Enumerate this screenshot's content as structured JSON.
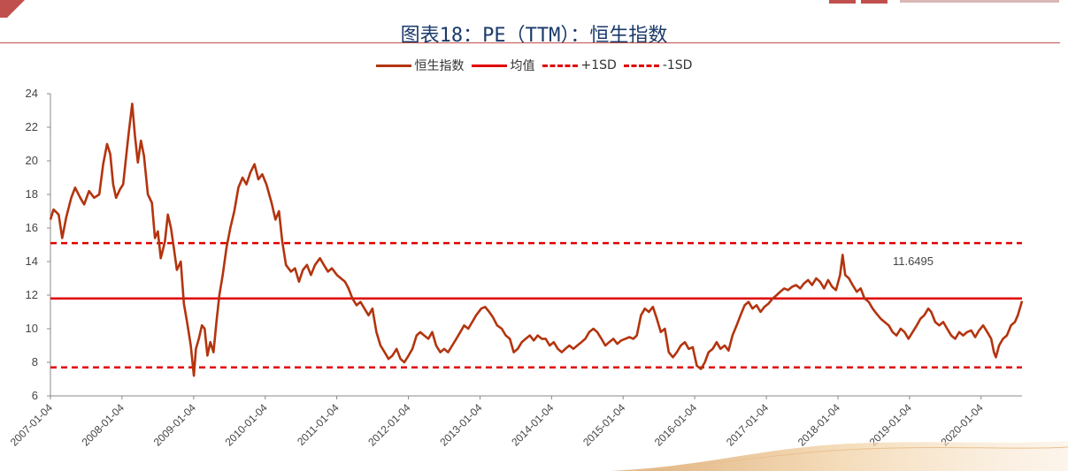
{
  "title": "图表18：PE（TTM）：恒生指数",
  "colors": {
    "index": "#b3340e",
    "mean": "#e00000",
    "sd": "#e00000",
    "axis": "#888888",
    "title": "#1a3a6a"
  },
  "chart_data": {
    "type": "line",
    "title": "图表18：PE（TTM）：恒生指数",
    "xlabel": "",
    "ylabel": "",
    "ylim": [
      6,
      24
    ],
    "yticks": [
      6,
      8,
      10,
      12,
      14,
      16,
      18,
      20,
      22,
      24
    ],
    "xticks": [
      "2007-01-04",
      "2008-01-04",
      "2009-01-04",
      "2010-01-04",
      "2011-01-04",
      "2012-01-04",
      "2013-01-04",
      "2014-01-04",
      "2015-01-04",
      "2016-01-04",
      "2017-01-04",
      "2018-01-04",
      "2019-01-04",
      "2020-01-04"
    ],
    "x_range": [
      "2007-01-04",
      "2020-07-31"
    ],
    "legend_position": "top",
    "annotation": "11.6495",
    "series": [
      {
        "name": "恒生指数",
        "style": "solid-thick",
        "points": [
          [
            "2007-01-04",
            16.5
          ],
          [
            "2007-01-20",
            17.1
          ],
          [
            "2007-02-15",
            16.8
          ],
          [
            "2007-03-05",
            15.4
          ],
          [
            "2007-03-25",
            16.6
          ],
          [
            "2007-04-20",
            17.8
          ],
          [
            "2007-05-10",
            18.4
          ],
          [
            "2007-06-05",
            17.8
          ],
          [
            "2007-06-25",
            17.4
          ],
          [
            "2007-07-20",
            18.2
          ],
          [
            "2007-08-15",
            17.8
          ],
          [
            "2007-09-10",
            18.0
          ],
          [
            "2007-09-30",
            19.8
          ],
          [
            "2007-10-20",
            21.0
          ],
          [
            "2007-11-05",
            20.4
          ],
          [
            "2007-11-20",
            18.6
          ],
          [
            "2007-12-05",
            17.8
          ],
          [
            "2007-12-25",
            18.3
          ],
          [
            "2008-01-10",
            18.6
          ],
          [
            "2008-02-05",
            21.4
          ],
          [
            "2008-02-25",
            23.4
          ],
          [
            "2008-03-10",
            21.5
          ],
          [
            "2008-03-25",
            19.9
          ],
          [
            "2008-04-10",
            21.2
          ],
          [
            "2008-04-25",
            20.3
          ],
          [
            "2008-05-15",
            18.0
          ],
          [
            "2008-06-05",
            17.5
          ],
          [
            "2008-06-20",
            15.4
          ],
          [
            "2008-07-05",
            15.8
          ],
          [
            "2008-07-20",
            14.2
          ],
          [
            "2008-08-10",
            15.2
          ],
          [
            "2008-08-25",
            16.8
          ],
          [
            "2008-09-10",
            16.0
          ],
          [
            "2008-09-25",
            14.8
          ],
          [
            "2008-10-10",
            13.5
          ],
          [
            "2008-10-30",
            14.0
          ],
          [
            "2008-11-15",
            11.5
          ],
          [
            "2008-12-01",
            10.4
          ],
          [
            "2008-12-20",
            9.0
          ],
          [
            "2009-01-05",
            7.2
          ],
          [
            "2009-01-15",
            8.8
          ],
          [
            "2009-01-30",
            9.4
          ],
          [
            "2009-02-15",
            10.2
          ],
          [
            "2009-03-01",
            10.0
          ],
          [
            "2009-03-15",
            8.4
          ],
          [
            "2009-03-30",
            9.2
          ],
          [
            "2009-04-15",
            8.6
          ],
          [
            "2009-04-30",
            10.4
          ],
          [
            "2009-05-15",
            12.0
          ],
          [
            "2009-06-01",
            13.2
          ],
          [
            "2009-06-20",
            14.8
          ],
          [
            "2009-07-10",
            16.0
          ],
          [
            "2009-07-30",
            17.0
          ],
          [
            "2009-08-20",
            18.4
          ],
          [
            "2009-09-10",
            19.0
          ],
          [
            "2009-09-30",
            18.6
          ],
          [
            "2009-10-20",
            19.3
          ],
          [
            "2009-11-10",
            19.8
          ],
          [
            "2009-11-30",
            18.9
          ],
          [
            "2009-12-20",
            19.2
          ],
          [
            "2010-01-10",
            18.6
          ],
          [
            "2010-02-05",
            17.5
          ],
          [
            "2010-02-25",
            16.5
          ],
          [
            "2010-03-15",
            17.0
          ],
          [
            "2010-04-01",
            15.2
          ],
          [
            "2010-04-20",
            13.8
          ],
          [
            "2010-05-15",
            13.4
          ],
          [
            "2010-06-05",
            13.6
          ],
          [
            "2010-06-25",
            12.8
          ],
          [
            "2010-07-15",
            13.5
          ],
          [
            "2010-08-05",
            13.8
          ],
          [
            "2010-08-25",
            13.2
          ],
          [
            "2010-09-15",
            13.8
          ],
          [
            "2010-10-10",
            14.2
          ],
          [
            "2010-10-30",
            13.8
          ],
          [
            "2010-11-20",
            13.4
          ],
          [
            "2010-12-10",
            13.6
          ],
          [
            "2011-01-05",
            13.2
          ],
          [
            "2011-01-25",
            13.0
          ],
          [
            "2011-02-15",
            12.8
          ],
          [
            "2011-03-05",
            12.4
          ],
          [
            "2011-03-25",
            11.8
          ],
          [
            "2011-04-15",
            11.4
          ],
          [
            "2011-05-05",
            11.6
          ],
          [
            "2011-05-25",
            11.2
          ],
          [
            "2011-06-15",
            10.8
          ],
          [
            "2011-07-05",
            11.2
          ],
          [
            "2011-07-25",
            9.8
          ],
          [
            "2011-08-15",
            9.0
          ],
          [
            "2011-09-05",
            8.6
          ],
          [
            "2011-09-25",
            8.2
          ],
          [
            "2011-10-15",
            8.4
          ],
          [
            "2011-11-05",
            8.8
          ],
          [
            "2011-11-25",
            8.2
          ],
          [
            "2011-12-15",
            8.0
          ],
          [
            "2012-01-05",
            8.4
          ],
          [
            "2012-01-25",
            8.8
          ],
          [
            "2012-02-15",
            9.6
          ],
          [
            "2012-03-05",
            9.8
          ],
          [
            "2012-03-25",
            9.6
          ],
          [
            "2012-04-15",
            9.4
          ],
          [
            "2012-05-05",
            9.8
          ],
          [
            "2012-05-25",
            9.0
          ],
          [
            "2012-06-15",
            8.6
          ],
          [
            "2012-07-05",
            8.8
          ],
          [
            "2012-07-25",
            8.6
          ],
          [
            "2012-08-15",
            9.0
          ],
          [
            "2012-09-05",
            9.4
          ],
          [
            "2012-09-25",
            9.8
          ],
          [
            "2012-10-15",
            10.2
          ],
          [
            "2012-11-05",
            10.0
          ],
          [
            "2012-11-25",
            10.4
          ],
          [
            "2012-12-15",
            10.8
          ],
          [
            "2013-01-10",
            11.2
          ],
          [
            "2013-01-30",
            11.3
          ],
          [
            "2013-02-20",
            11.0
          ],
          [
            "2013-03-10",
            10.7
          ],
          [
            "2013-04-01",
            10.2
          ],
          [
            "2013-04-25",
            10.0
          ],
          [
            "2013-05-15",
            9.6
          ],
          [
            "2013-06-05",
            9.4
          ],
          [
            "2013-06-25",
            8.6
          ],
          [
            "2013-07-15",
            8.8
          ],
          [
            "2013-08-05",
            9.2
          ],
          [
            "2013-08-25",
            9.4
          ],
          [
            "2013-09-15",
            9.6
          ],
          [
            "2013-10-05",
            9.3
          ],
          [
            "2013-10-25",
            9.6
          ],
          [
            "2013-11-15",
            9.4
          ],
          [
            "2013-12-05",
            9.4
          ],
          [
            "2013-12-25",
            9.0
          ],
          [
            "2014-01-15",
            9.2
          ],
          [
            "2014-02-05",
            8.8
          ],
          [
            "2014-02-25",
            8.6
          ],
          [
            "2014-03-15",
            8.8
          ],
          [
            "2014-04-05",
            9.0
          ],
          [
            "2014-04-25",
            8.8
          ],
          [
            "2014-05-15",
            9.0
          ],
          [
            "2014-06-05",
            9.2
          ],
          [
            "2014-06-25",
            9.4
          ],
          [
            "2014-07-15",
            9.8
          ],
          [
            "2014-08-05",
            10.0
          ],
          [
            "2014-08-25",
            9.8
          ],
          [
            "2014-09-15",
            9.4
          ],
          [
            "2014-10-05",
            9.0
          ],
          [
            "2014-10-25",
            9.2
          ],
          [
            "2014-11-15",
            9.4
          ],
          [
            "2014-12-05",
            9.1
          ],
          [
            "2014-12-25",
            9.3
          ],
          [
            "2015-01-15",
            9.4
          ],
          [
            "2015-02-05",
            9.5
          ],
          [
            "2015-02-25",
            9.4
          ],
          [
            "2015-03-15",
            9.6
          ],
          [
            "2015-04-05",
            10.8
          ],
          [
            "2015-04-25",
            11.2
          ],
          [
            "2015-05-15",
            11.0
          ],
          [
            "2015-06-05",
            11.3
          ],
          [
            "2015-06-25",
            10.6
          ],
          [
            "2015-07-15",
            9.8
          ],
          [
            "2015-08-05",
            10.0
          ],
          [
            "2015-08-25",
            8.6
          ],
          [
            "2015-09-15",
            8.3
          ],
          [
            "2015-10-05",
            8.6
          ],
          [
            "2015-10-25",
            9.0
          ],
          [
            "2015-11-15",
            9.2
          ],
          [
            "2015-12-05",
            8.8
          ],
          [
            "2015-12-25",
            8.9
          ],
          [
            "2016-01-15",
            7.8
          ],
          [
            "2016-02-05",
            7.6
          ],
          [
            "2016-02-25",
            8.0
          ],
          [
            "2016-03-15",
            8.6
          ],
          [
            "2016-04-05",
            8.8
          ],
          [
            "2016-04-25",
            9.2
          ],
          [
            "2016-05-15",
            8.8
          ],
          [
            "2016-06-05",
            9.0
          ],
          [
            "2016-06-25",
            8.7
          ],
          [
            "2016-07-15",
            9.6
          ],
          [
            "2016-08-05",
            10.2
          ],
          [
            "2016-08-25",
            10.8
          ],
          [
            "2016-09-15",
            11.4
          ],
          [
            "2016-10-05",
            11.6
          ],
          [
            "2016-10-25",
            11.2
          ],
          [
            "2016-11-15",
            11.4
          ],
          [
            "2016-12-05",
            11.0
          ],
          [
            "2016-12-25",
            11.3
          ],
          [
            "2017-01-15",
            11.5
          ],
          [
            "2017-02-05",
            11.8
          ],
          [
            "2017-02-25",
            12.0
          ],
          [
            "2017-03-15",
            12.2
          ],
          [
            "2017-04-05",
            12.4
          ],
          [
            "2017-04-25",
            12.3
          ],
          [
            "2017-05-15",
            12.5
          ],
          [
            "2017-06-05",
            12.6
          ],
          [
            "2017-06-25",
            12.4
          ],
          [
            "2017-07-15",
            12.7
          ],
          [
            "2017-08-05",
            12.9
          ],
          [
            "2017-08-25",
            12.6
          ],
          [
            "2017-09-15",
            13.0
          ],
          [
            "2017-10-05",
            12.8
          ],
          [
            "2017-10-25",
            12.4
          ],
          [
            "2017-11-15",
            12.9
          ],
          [
            "2017-12-05",
            12.5
          ],
          [
            "2017-12-25",
            12.3
          ],
          [
            "2018-01-15",
            13.2
          ],
          [
            "2018-01-28",
            14.4
          ],
          [
            "2018-02-10",
            13.2
          ],
          [
            "2018-03-01",
            13.0
          ],
          [
            "2018-03-20",
            12.6
          ],
          [
            "2018-04-10",
            12.2
          ],
          [
            "2018-04-30",
            12.4
          ],
          [
            "2018-05-20",
            11.8
          ],
          [
            "2018-06-10",
            11.6
          ],
          [
            "2018-06-30",
            11.2
          ],
          [
            "2018-07-20",
            10.9
          ],
          [
            "2018-08-10",
            10.6
          ],
          [
            "2018-08-30",
            10.4
          ],
          [
            "2018-09-20",
            10.2
          ],
          [
            "2018-10-10",
            9.8
          ],
          [
            "2018-10-30",
            9.6
          ],
          [
            "2018-11-20",
            10.0
          ],
          [
            "2018-12-10",
            9.8
          ],
          [
            "2018-12-30",
            9.4
          ],
          [
            "2019-01-20",
            9.8
          ],
          [
            "2019-02-10",
            10.2
          ],
          [
            "2019-03-01",
            10.6
          ],
          [
            "2019-03-20",
            10.8
          ],
          [
            "2019-04-10",
            11.2
          ],
          [
            "2019-04-25",
            11.0
          ],
          [
            "2019-05-15",
            10.4
          ],
          [
            "2019-06-05",
            10.2
          ],
          [
            "2019-06-25",
            10.4
          ],
          [
            "2019-07-15",
            10.0
          ],
          [
            "2019-08-05",
            9.6
          ],
          [
            "2019-08-25",
            9.4
          ],
          [
            "2019-09-15",
            9.8
          ],
          [
            "2019-10-05",
            9.6
          ],
          [
            "2019-10-25",
            9.8
          ],
          [
            "2019-11-15",
            9.9
          ],
          [
            "2019-12-05",
            9.5
          ],
          [
            "2019-12-25",
            9.9
          ],
          [
            "2020-01-15",
            10.2
          ],
          [
            "2020-02-05",
            9.8
          ],
          [
            "2020-02-25",
            9.4
          ],
          [
            "2020-03-10",
            8.6
          ],
          [
            "2020-03-20",
            8.3
          ],
          [
            "2020-04-05",
            9.0
          ],
          [
            "2020-04-25",
            9.4
          ],
          [
            "2020-05-15",
            9.6
          ],
          [
            "2020-06-05",
            10.2
          ],
          [
            "2020-06-25",
            10.4
          ],
          [
            "2020-07-10",
            10.8
          ],
          [
            "2020-07-25",
            11.4
          ],
          [
            "2020-07-31",
            11.65
          ]
        ]
      },
      {
        "name": "均值",
        "style": "solid",
        "value": 11.8
      },
      {
        "name": "+1SD",
        "style": "dashed",
        "value": 15.1
      },
      {
        "name": "-1SD",
        "style": "dashed",
        "value": 7.7
      }
    ]
  }
}
